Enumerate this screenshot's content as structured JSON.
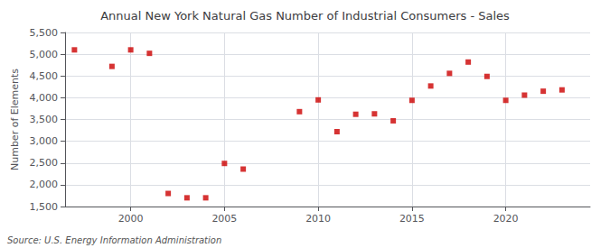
{
  "chart_data": {
    "type": "scatter",
    "title": "Annual New York Natural Gas Number of Industrial Consumers - Sales",
    "ylabel": "Number of Elements",
    "source": "Source: U.S. Energy Information Administration",
    "color": "#cc0000",
    "marker": "square",
    "x": [
      1997,
      1999,
      2000,
      2001,
      2002,
      2003,
      2004,
      2005,
      2006,
      2009,
      2010,
      2011,
      2012,
      2013,
      2014,
      2015,
      2016,
      2017,
      2018,
      2019,
      2020,
      2021,
      2022,
      2023
    ],
    "values": [
      5100,
      4720,
      5100,
      5020,
      1800,
      1700,
      1700,
      2490,
      2360,
      3680,
      3950,
      3220,
      3620,
      3630,
      3470,
      3940,
      4270,
      4560,
      4820,
      4490,
      3940,
      4060,
      4150,
      4180
    ],
    "xlim": [
      1996.5,
      2024.5
    ],
    "xticks": [
      2000,
      2005,
      2010,
      2015,
      2020
    ],
    "ylim": [
      1500,
      5500
    ],
    "yticks": [
      {
        "value": 1500,
        "label": "1,500"
      },
      {
        "value": 2000,
        "label": "2,000"
      },
      {
        "value": 2500,
        "label": "2,500"
      },
      {
        "value": 3000,
        "label": "3,000"
      },
      {
        "value": 3500,
        "label": "3,500"
      },
      {
        "value": 4000,
        "label": "4,000"
      },
      {
        "value": 4500,
        "label": "4,500"
      },
      {
        "value": 5000,
        "label": "5,000"
      },
      {
        "value": 5500,
        "label": "5,500"
      }
    ],
    "grid": true
  }
}
